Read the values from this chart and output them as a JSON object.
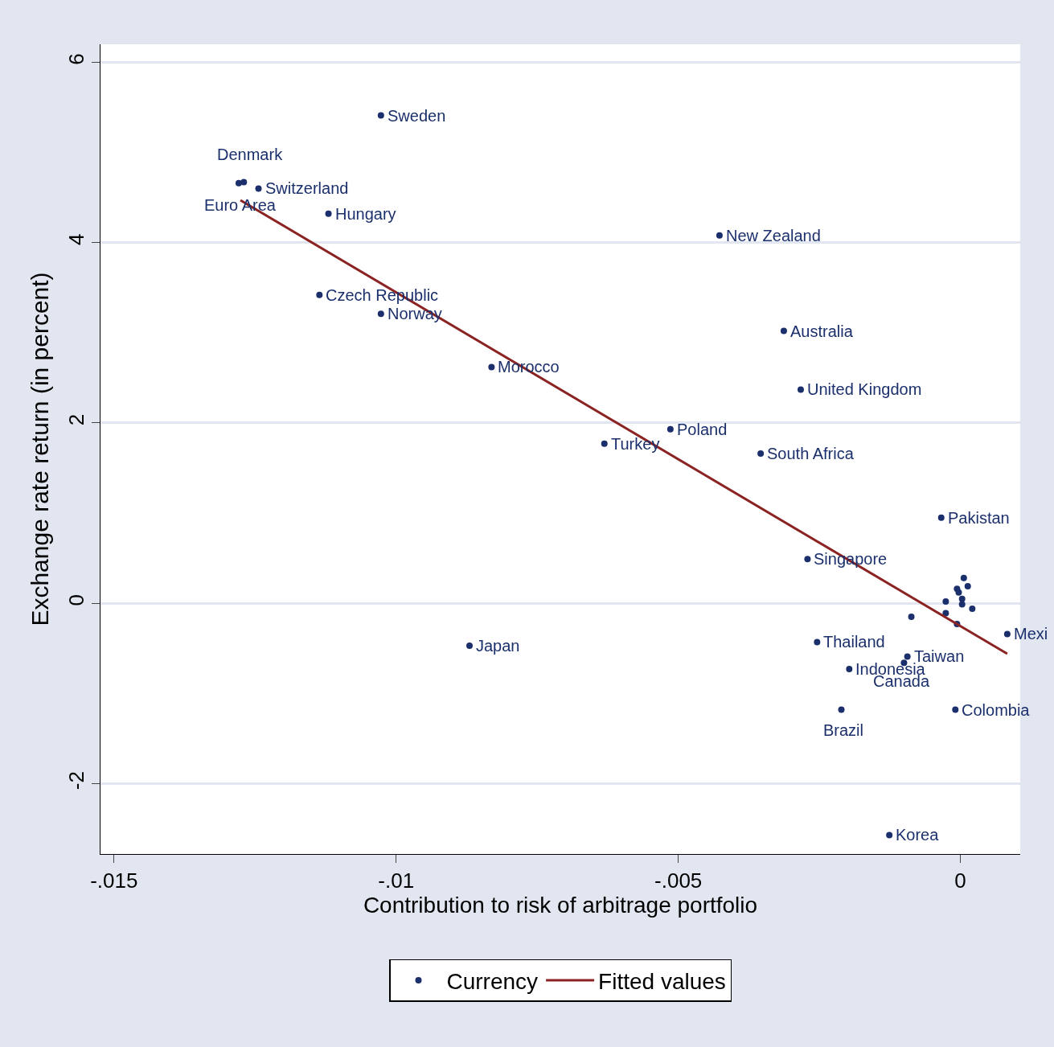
{
  "chart_data": {
    "type": "scatter",
    "xlabel": "Contribution to risk of arbitrage portfolio",
    "ylabel": "Exchange rate return (in percent)",
    "xlim": [
      -0.01524,
      0.00106
    ],
    "ylim": [
      -2.78,
      6.2
    ],
    "xticks": [
      {
        "value": -0.015,
        "label": "-.015"
      },
      {
        "value": -0.01,
        "label": "-.01"
      },
      {
        "value": -0.005,
        "label": "-.005"
      },
      {
        "value": 0,
        "label": "0"
      }
    ],
    "yticks": [
      -2,
      0,
      2,
      4,
      6
    ],
    "grid": "y",
    "legend": "bottom",
    "series": [
      {
        "name": "Currency",
        "color": "#1a2f6b",
        "marker": "circle",
        "x": [
          -0.01027,
          -0.0127,
          -0.01279,
          -0.01244,
          -0.0112,
          -0.00427,
          -0.01136,
          -0.01027,
          -0.00313,
          -0.00831,
          -0.00283,
          -0.00514,
          -0.00631,
          -0.00354,
          -0.00034,
          -0.00271,
          -0.0087,
          -0.00254,
          0.00083,
          -0.00094,
          -0.00197,
          -0.001,
          -9e-05,
          -0.00211,
          -0.00126,
          6e-05,
          0.00013,
          -6e-05,
          -3e-05,
          3e-05,
          3e-05,
          -0.00026,
          0.00021,
          -0.00026,
          -0.00087,
          -6e-05
        ],
        "values": [
          5.41,
          4.67,
          4.66,
          4.6,
          4.32,
          4.08,
          3.42,
          3.21,
          3.02,
          2.62,
          2.37,
          1.93,
          1.77,
          1.66,
          0.95,
          0.49,
          -0.47,
          -0.43,
          -0.34,
          -0.59,
          -0.73,
          -0.66,
          -1.18,
          -1.18,
          -2.57,
          0.28,
          0.19,
          0.16,
          0.12,
          0.05,
          -0.01,
          0.02,
          -0.06,
          -0.11,
          -0.15,
          -0.23
        ]
      },
      {
        "name": "Fitted values",
        "type": "line",
        "color": "#8b2323",
        "line_style": "solid",
        "marker": "none",
        "x": [
          -0.01276,
          0.00083
        ],
        "values": [
          4.47,
          -0.56
        ]
      }
    ],
    "annotations": [
      {
        "text": "Sweden",
        "x": -0.01027,
        "y": 5.41
      },
      {
        "text": "Denmark",
        "x": -0.0127,
        "y": 4.67
      },
      {
        "text": "Euro Area",
        "x": -0.01279,
        "y": 4.66
      },
      {
        "text": "Switzerland",
        "x": -0.01244,
        "y": 4.6
      },
      {
        "text": "Hungary",
        "x": -0.0112,
        "y": 4.32
      },
      {
        "text": "New Zealand",
        "x": -0.00427,
        "y": 4.08
      },
      {
        "text": "Czech Republic",
        "x": -0.01136,
        "y": 3.42
      },
      {
        "text": "Norway",
        "x": -0.01027,
        "y": 3.21
      },
      {
        "text": "Australia",
        "x": -0.00313,
        "y": 3.02
      },
      {
        "text": "Morocco",
        "x": -0.00831,
        "y": 2.62
      },
      {
        "text": "United Kingdom",
        "x": -0.00283,
        "y": 2.37
      },
      {
        "text": "Poland",
        "x": -0.00514,
        "y": 1.93
      },
      {
        "text": "Turkey",
        "x": -0.00631,
        "y": 1.77
      },
      {
        "text": "South Africa",
        "x": -0.00354,
        "y": 1.66
      },
      {
        "text": "Pakistan",
        "x": -0.00034,
        "y": 0.95
      },
      {
        "text": "Singapore",
        "x": -0.00271,
        "y": 0.49
      },
      {
        "text": "Japan",
        "x": -0.0087,
        "y": -0.47
      },
      {
        "text": "Thailand",
        "x": -0.00254,
        "y": -0.43
      },
      {
        "text": "Mexi",
        "x": 0.00083,
        "y": -0.34
      },
      {
        "text": "Taiwan",
        "x": -0.00094,
        "y": -0.59
      },
      {
        "text": "Indonesia",
        "x": -0.00197,
        "y": -0.73
      },
      {
        "text": "Canada",
        "x": -0.001,
        "y": -0.66
      },
      {
        "text": "Colombia",
        "x": -9e-05,
        "y": -1.18
      },
      {
        "text": "Brazil",
        "x": -0.00211,
        "y": -1.18
      },
      {
        "text": "Korea",
        "x": -0.00126,
        "y": -2.57
      }
    ]
  }
}
